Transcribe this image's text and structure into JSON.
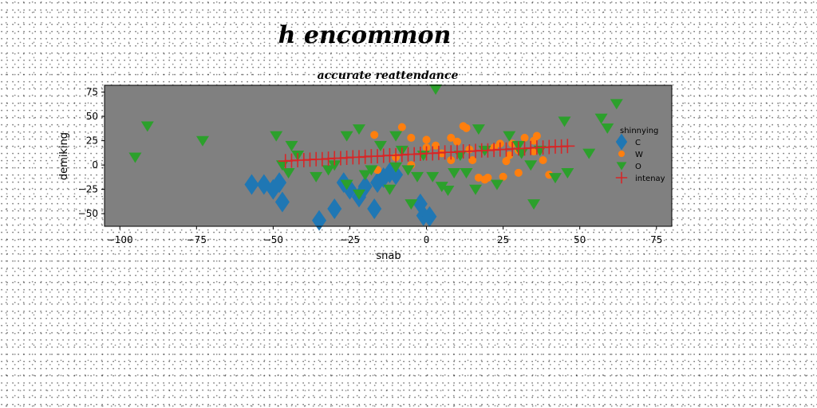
{
  "chart_data": {
    "type": "scatter",
    "title": "h encommon",
    "subtitle": "accurate reattendance",
    "xlabel": "snab",
    "ylabel": "demiking",
    "xlim": [
      -105,
      80
    ],
    "ylim": [
      -63,
      82
    ],
    "xticks": [
      -100,
      -75,
      -50,
      -25,
      0,
      25,
      50,
      75
    ],
    "yticks": [
      -50,
      -25,
      0,
      25,
      50,
      75
    ],
    "xtick_labels": [
      "−100",
      "−75",
      "−50",
      "−25",
      "0",
      "25",
      "50",
      "75"
    ],
    "ytick_labels": [
      "−50",
      "−25",
      "0",
      "25",
      "50",
      "75"
    ],
    "grid": false,
    "legend_placement": "center-right",
    "legend_title": "shinnying",
    "background": "#808080",
    "series": [
      {
        "name": "C",
        "marker": "diamond",
        "color": "#1f77b4",
        "points": [
          [
            -57,
            -20
          ],
          [
            -53,
            -20
          ],
          [
            -50,
            -25
          ],
          [
            -48,
            -18
          ],
          [
            -47,
            -38
          ],
          [
            -35,
            -57
          ],
          [
            -30,
            -45
          ],
          [
            -27,
            -18
          ],
          [
            -25,
            -25
          ],
          [
            -22,
            -33
          ],
          [
            -20,
            -22
          ],
          [
            -17,
            -45
          ],
          [
            -16,
            -18
          ],
          [
            -14,
            -13
          ],
          [
            -12,
            -8
          ],
          [
            -10,
            -10
          ],
          [
            -2,
            -40
          ],
          [
            -1,
            -52
          ],
          [
            1,
            -53
          ]
        ]
      },
      {
        "name": "W",
        "marker": "circle",
        "color": "#ff7f0e",
        "points": [
          [
            -8,
            39
          ],
          [
            -5,
            28
          ],
          [
            0,
            26
          ],
          [
            0,
            18
          ],
          [
            3,
            20
          ],
          [
            5,
            12
          ],
          [
            8,
            28
          ],
          [
            10,
            24
          ],
          [
            12,
            40
          ],
          [
            13,
            38
          ],
          [
            14,
            16
          ],
          [
            15,
            5
          ],
          [
            17,
            -13
          ],
          [
            19,
            -15
          ],
          [
            20,
            -13
          ],
          [
            22,
            18
          ],
          [
            24,
            22
          ],
          [
            25,
            -12
          ],
          [
            26,
            4
          ],
          [
            27,
            10
          ],
          [
            28,
            22
          ],
          [
            30,
            15
          ],
          [
            30,
            -8
          ],
          [
            32,
            28
          ],
          [
            35,
            14
          ],
          [
            35,
            25
          ],
          [
            36,
            30
          ],
          [
            38,
            5
          ],
          [
            40,
            -10
          ],
          [
            -17,
            31
          ],
          [
            -16,
            -5
          ],
          [
            -10,
            8
          ],
          [
            -5,
            0
          ],
          [
            8,
            5
          ]
        ]
      },
      {
        "name": "O",
        "marker": "triangle-down",
        "color": "#2ca02c",
        "points": [
          [
            -95,
            8
          ],
          [
            -91,
            40
          ],
          [
            -73,
            25
          ],
          [
            -49,
            30
          ],
          [
            -47,
            0
          ],
          [
            -44,
            20
          ],
          [
            -42,
            10
          ],
          [
            -32,
            -5
          ],
          [
            -26,
            30
          ],
          [
            -22,
            37
          ],
          [
            -22,
            -30
          ],
          [
            -20,
            -10
          ],
          [
            -18,
            -5
          ],
          [
            -15,
            20
          ],
          [
            -12,
            -25
          ],
          [
            -10,
            30
          ],
          [
            -8,
            15
          ],
          [
            -6,
            -5
          ],
          [
            -5,
            -40
          ],
          [
            -3,
            -12
          ],
          [
            -1,
            10
          ],
          [
            2,
            -12
          ],
          [
            3,
            78
          ],
          [
            5,
            -22
          ],
          [
            7,
            -26
          ],
          [
            9,
            -8
          ],
          [
            11,
            10
          ],
          [
            13,
            -8
          ],
          [
            16,
            -25
          ],
          [
            17,
            37
          ],
          [
            19,
            15
          ],
          [
            23,
            -20
          ],
          [
            27,
            30
          ],
          [
            30,
            20
          ],
          [
            31,
            12
          ],
          [
            34,
            0
          ],
          [
            35,
            -40
          ],
          [
            37,
            15
          ],
          [
            42,
            -13
          ],
          [
            45,
            45
          ],
          [
            46,
            -8
          ],
          [
            53,
            12
          ],
          [
            57,
            48
          ],
          [
            59,
            38
          ],
          [
            62,
            63
          ],
          [
            -45,
            -8
          ],
          [
            -36,
            -12
          ],
          [
            -30,
            0
          ],
          [
            -26,
            -20
          ],
          [
            -10,
            -2
          ]
        ]
      },
      {
        "name": "intenay",
        "marker": "plus",
        "color": "#d62728",
        "points": [
          [
            -46,
            4
          ],
          [
            -44,
            4.5
          ],
          [
            -42,
            5
          ],
          [
            -40,
            5
          ],
          [
            -38,
            5.5
          ],
          [
            -36,
            6
          ],
          [
            -34,
            6
          ],
          [
            -32,
            6.5
          ],
          [
            -30,
            7
          ],
          [
            -28,
            7
          ],
          [
            -26,
            7.5
          ],
          [
            -24,
            8
          ],
          [
            -22,
            8
          ],
          [
            -20,
            8.5
          ],
          [
            -18,
            9
          ],
          [
            -16,
            9
          ],
          [
            -14,
            9.5
          ],
          [
            -12,
            10
          ],
          [
            -10,
            10
          ],
          [
            -8,
            10.5
          ],
          [
            -6,
            11
          ],
          [
            -4,
            11
          ],
          [
            -2,
            11.5
          ],
          [
            0,
            12
          ],
          [
            2,
            12
          ],
          [
            4,
            12.5
          ],
          [
            6,
            13
          ],
          [
            8,
            13
          ],
          [
            10,
            13.5
          ],
          [
            12,
            14
          ],
          [
            14,
            14
          ],
          [
            16,
            14.5
          ],
          [
            18,
            15
          ],
          [
            20,
            15
          ],
          [
            22,
            15.5
          ],
          [
            24,
            16
          ],
          [
            26,
            16
          ],
          [
            28,
            16.5
          ],
          [
            30,
            17
          ],
          [
            32,
            17
          ],
          [
            34,
            17.5
          ],
          [
            36,
            18
          ],
          [
            38,
            18
          ],
          [
            40,
            18.5
          ],
          [
            42,
            19
          ],
          [
            44,
            19
          ],
          [
            46,
            19.5
          ]
        ]
      }
    ]
  }
}
